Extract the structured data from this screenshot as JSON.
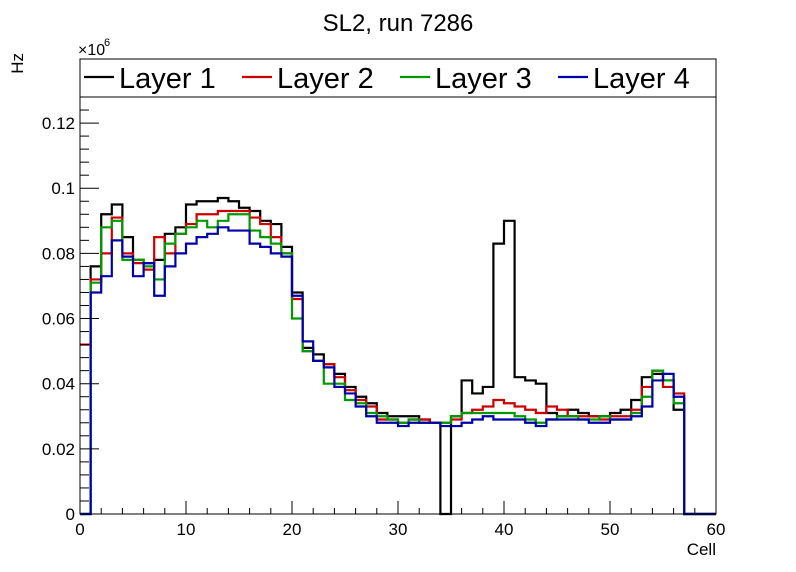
{
  "chart_data": {
    "type": "line",
    "step": true,
    "title": "SL2, run 7286",
    "xlabel": "Cell",
    "ylabel": "Hz",
    "y_multiplier": "×10",
    "y_multiplier_exp": "6",
    "xlim": [
      0,
      60
    ],
    "ylim": [
      0,
      0.128
    ],
    "x_ticks": [
      0,
      10,
      20,
      30,
      40,
      50,
      60
    ],
    "y_ticks": [
      0,
      0.02,
      0.04,
      0.06,
      0.08,
      0.1,
      0.12
    ],
    "y_tick_labels": [
      "0",
      "0.02",
      "0.04",
      "0.06",
      "0.08",
      "0.1",
      "0.12"
    ],
    "x_tick_labels": [
      "0",
      "10",
      "20",
      "30",
      "40",
      "50",
      "60"
    ],
    "bins": 60,
    "legend_position": "top",
    "series": [
      {
        "name": "Layer 1",
        "color": "#000000",
        "values": [
          0.0,
          0.076,
          0.092,
          0.095,
          0.085,
          0.078,
          0.077,
          0.078,
          0.086,
          0.088,
          0.095,
          0.096,
          0.096,
          0.097,
          0.096,
          0.094,
          0.093,
          0.09,
          0.089,
          0.082,
          0.068,
          0.051,
          0.049,
          0.046,
          0.043,
          0.039,
          0.036,
          0.034,
          0.031,
          0.03,
          0.03,
          0.03,
          0.029,
          0.028,
          0.0,
          0.03,
          0.041,
          0.037,
          0.039,
          0.083,
          0.09,
          0.042,
          0.041,
          0.04,
          0.031,
          0.03,
          0.032,
          0.031,
          0.03,
          0.03,
          0.031,
          0.032,
          0.035,
          0.042,
          0.043,
          0.041,
          0.032,
          0.0,
          0.0,
          0.0
        ]
      },
      {
        "name": "Layer 2",
        "color": "#cc0000",
        "values": [
          0.052,
          0.072,
          0.08,
          0.091,
          0.08,
          0.077,
          0.075,
          0.085,
          0.08,
          0.086,
          0.089,
          0.092,
          0.092,
          0.093,
          0.093,
          0.093,
          0.091,
          0.089,
          0.085,
          0.08,
          0.066,
          0.05,
          0.047,
          0.046,
          0.042,
          0.038,
          0.035,
          0.033,
          0.029,
          0.029,
          0.028,
          0.029,
          0.029,
          0.028,
          0.028,
          0.029,
          0.031,
          0.032,
          0.033,
          0.035,
          0.034,
          0.033,
          0.032,
          0.031,
          0.033,
          0.032,
          0.03,
          0.03,
          0.03,
          0.029,
          0.03,
          0.03,
          0.032,
          0.039,
          0.044,
          0.039,
          0.037,
          0.0,
          0.0,
          0.0
        ]
      },
      {
        "name": "Layer 3",
        "color": "#009900",
        "values": [
          0.0,
          0.071,
          0.088,
          0.09,
          0.078,
          0.078,
          0.076,
          0.072,
          0.083,
          0.086,
          0.088,
          0.09,
          0.088,
          0.09,
          0.092,
          0.092,
          0.087,
          0.085,
          0.083,
          0.08,
          0.06,
          0.05,
          0.047,
          0.04,
          0.04,
          0.035,
          0.034,
          0.031,
          0.03,
          0.029,
          0.028,
          0.029,
          0.028,
          0.028,
          0.028,
          0.03,
          0.031,
          0.031,
          0.031,
          0.031,
          0.031,
          0.03,
          0.029,
          0.028,
          0.029,
          0.03,
          0.03,
          0.029,
          0.029,
          0.03,
          0.029,
          0.029,
          0.031,
          0.036,
          0.044,
          0.041,
          0.034,
          0.0,
          0.0,
          0.0
        ]
      },
      {
        "name": "Layer 4",
        "color": "#0000aa",
        "values": [
          0.0,
          0.068,
          0.073,
          0.084,
          0.079,
          0.073,
          0.077,
          0.067,
          0.076,
          0.08,
          0.083,
          0.085,
          0.086,
          0.088,
          0.087,
          0.087,
          0.083,
          0.082,
          0.08,
          0.079,
          0.067,
          0.053,
          0.047,
          0.045,
          0.039,
          0.037,
          0.033,
          0.03,
          0.028,
          0.028,
          0.027,
          0.028,
          0.028,
          0.028,
          0.027,
          0.027,
          0.028,
          0.029,
          0.03,
          0.029,
          0.029,
          0.029,
          0.028,
          0.027,
          0.029,
          0.029,
          0.029,
          0.029,
          0.028,
          0.028,
          0.029,
          0.029,
          0.03,
          0.033,
          0.041,
          0.043,
          0.036,
          0.0,
          0.0,
          0.0
        ]
      }
    ]
  }
}
